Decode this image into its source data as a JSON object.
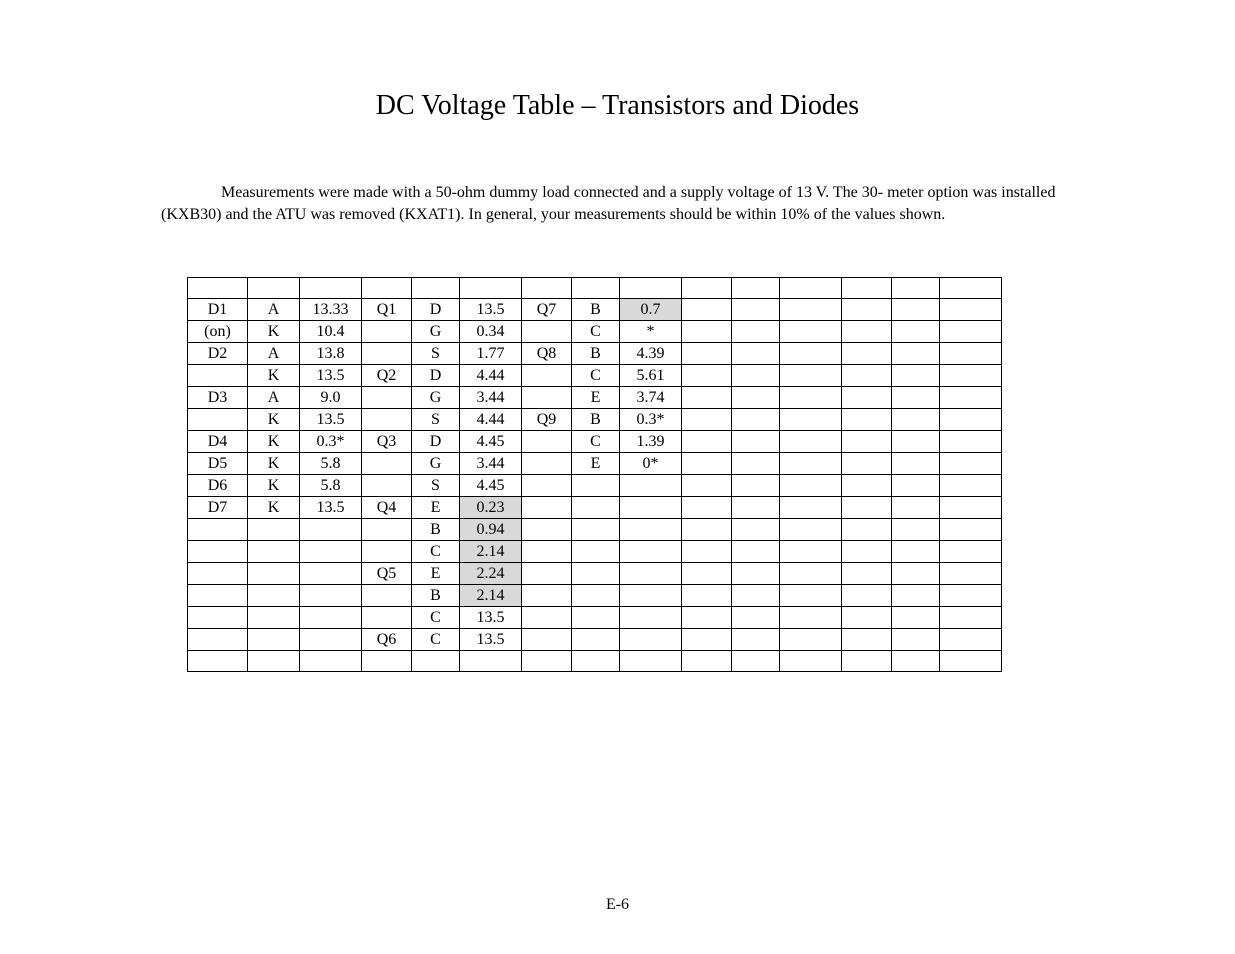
{
  "title": "DC Voltage Table – Transistors and Diodes",
  "description": "Measurements were made with a 50-ohm dummy load connected and a supply voltage of 13 V. The 30- meter option was installed (KXB30) and the ATU was removed (KXAT1). In general, your measurements should be within 10% of the values shown.",
  "pageNumber": "E-6",
  "table": {
    "rows": [
      [
        {
          "v": "",
          "s": 0
        },
        {
          "v": "",
          "s": 0
        },
        {
          "v": "",
          "s": 0
        },
        {
          "v": "",
          "s": 0
        },
        {
          "v": "",
          "s": 0
        },
        {
          "v": "",
          "s": 0
        },
        {
          "v": "",
          "s": 0
        },
        {
          "v": "",
          "s": 0
        },
        {
          "v": "",
          "s": 0
        },
        {
          "v": "",
          "s": 0
        },
        {
          "v": "",
          "s": 0
        },
        {
          "v": "",
          "s": 0
        },
        {
          "v": "",
          "s": 0
        },
        {
          "v": "",
          "s": 0
        },
        {
          "v": "",
          "s": 0
        }
      ],
      [
        {
          "v": "D1",
          "s": 0
        },
        {
          "v": "A",
          "s": 0
        },
        {
          "v": "13.33",
          "s": 0
        },
        {
          "v": "Q1",
          "s": 0
        },
        {
          "v": "D",
          "s": 0
        },
        {
          "v": "13.5",
          "s": 0
        },
        {
          "v": "Q7",
          "s": 0
        },
        {
          "v": "B",
          "s": 0
        },
        {
          "v": "0.7",
          "s": 1
        },
        {
          "v": "",
          "s": 0
        },
        {
          "v": "",
          "s": 0
        },
        {
          "v": "",
          "s": 0
        },
        {
          "v": "",
          "s": 0
        },
        {
          "v": "",
          "s": 0
        },
        {
          "v": "",
          "s": 0
        }
      ],
      [
        {
          "v": "(on)",
          "s": 0
        },
        {
          "v": "K",
          "s": 0
        },
        {
          "v": "10.4",
          "s": 0
        },
        {
          "v": "",
          "s": 0
        },
        {
          "v": "G",
          "s": 0
        },
        {
          "v": "0.34",
          "s": 0
        },
        {
          "v": "",
          "s": 0
        },
        {
          "v": "C",
          "s": 0
        },
        {
          "v": "*",
          "s": 0
        },
        {
          "v": "",
          "s": 0
        },
        {
          "v": "",
          "s": 0
        },
        {
          "v": "",
          "s": 0
        },
        {
          "v": "",
          "s": 0
        },
        {
          "v": "",
          "s": 0
        },
        {
          "v": "",
          "s": 0
        }
      ],
      [
        {
          "v": "D2",
          "s": 0
        },
        {
          "v": "A",
          "s": 0
        },
        {
          "v": "13.8",
          "s": 0
        },
        {
          "v": "",
          "s": 0
        },
        {
          "v": "S",
          "s": 0
        },
        {
          "v": "1.77",
          "s": 0
        },
        {
          "v": "Q8",
          "s": 0
        },
        {
          "v": "B",
          "s": 0
        },
        {
          "v": "4.39",
          "s": 0
        },
        {
          "v": "",
          "s": 0
        },
        {
          "v": "",
          "s": 0
        },
        {
          "v": "",
          "s": 0
        },
        {
          "v": "",
          "s": 0
        },
        {
          "v": "",
          "s": 0
        },
        {
          "v": "",
          "s": 0
        }
      ],
      [
        {
          "v": "",
          "s": 0
        },
        {
          "v": "K",
          "s": 0
        },
        {
          "v": "13.5",
          "s": 0
        },
        {
          "v": "Q2",
          "s": 0
        },
        {
          "v": "D",
          "s": 0
        },
        {
          "v": "4.44",
          "s": 0
        },
        {
          "v": "",
          "s": 0
        },
        {
          "v": "C",
          "s": 0
        },
        {
          "v": "5.61",
          "s": 0
        },
        {
          "v": "",
          "s": 0
        },
        {
          "v": "",
          "s": 0
        },
        {
          "v": "",
          "s": 0
        },
        {
          "v": "",
          "s": 0
        },
        {
          "v": "",
          "s": 0
        },
        {
          "v": "",
          "s": 0
        }
      ],
      [
        {
          "v": "D3",
          "s": 0
        },
        {
          "v": "A",
          "s": 0
        },
        {
          "v": "9.0",
          "s": 0
        },
        {
          "v": "",
          "s": 0
        },
        {
          "v": "G",
          "s": 0
        },
        {
          "v": "3.44",
          "s": 0
        },
        {
          "v": "",
          "s": 0
        },
        {
          "v": "E",
          "s": 0
        },
        {
          "v": "3.74",
          "s": 0
        },
        {
          "v": "",
          "s": 0
        },
        {
          "v": "",
          "s": 0
        },
        {
          "v": "",
          "s": 0
        },
        {
          "v": "",
          "s": 0
        },
        {
          "v": "",
          "s": 0
        },
        {
          "v": "",
          "s": 0
        }
      ],
      [
        {
          "v": "",
          "s": 0
        },
        {
          "v": "K",
          "s": 0
        },
        {
          "v": "13.5",
          "s": 0
        },
        {
          "v": "",
          "s": 0
        },
        {
          "v": "S",
          "s": 0
        },
        {
          "v": "4.44",
          "s": 0
        },
        {
          "v": "Q9",
          "s": 0
        },
        {
          "v": "B",
          "s": 0
        },
        {
          "v": "0.3*",
          "s": 0
        },
        {
          "v": "",
          "s": 0
        },
        {
          "v": "",
          "s": 0
        },
        {
          "v": "",
          "s": 0
        },
        {
          "v": "",
          "s": 0
        },
        {
          "v": "",
          "s": 0
        },
        {
          "v": "",
          "s": 0
        }
      ],
      [
        {
          "v": "D4",
          "s": 0
        },
        {
          "v": "K",
          "s": 0
        },
        {
          "v": "0.3*",
          "s": 0
        },
        {
          "v": "Q3",
          "s": 0
        },
        {
          "v": "D",
          "s": 0
        },
        {
          "v": "4.45",
          "s": 0
        },
        {
          "v": "",
          "s": 0
        },
        {
          "v": "C",
          "s": 0
        },
        {
          "v": "1.39",
          "s": 0
        },
        {
          "v": "",
          "s": 0
        },
        {
          "v": "",
          "s": 0
        },
        {
          "v": "",
          "s": 0
        },
        {
          "v": "",
          "s": 0
        },
        {
          "v": "",
          "s": 0
        },
        {
          "v": "",
          "s": 0
        }
      ],
      [
        {
          "v": "D5",
          "s": 0
        },
        {
          "v": "K",
          "s": 0
        },
        {
          "v": "5.8",
          "s": 0
        },
        {
          "v": "",
          "s": 0
        },
        {
          "v": "G",
          "s": 0
        },
        {
          "v": "3.44",
          "s": 0
        },
        {
          "v": "",
          "s": 0
        },
        {
          "v": "E",
          "s": 0
        },
        {
          "v": "0*",
          "s": 0
        },
        {
          "v": "",
          "s": 0
        },
        {
          "v": "",
          "s": 0
        },
        {
          "v": "",
          "s": 0
        },
        {
          "v": "",
          "s": 0
        },
        {
          "v": "",
          "s": 0
        },
        {
          "v": "",
          "s": 0
        }
      ],
      [
        {
          "v": "D6",
          "s": 0
        },
        {
          "v": "K",
          "s": 0
        },
        {
          "v": "5.8",
          "s": 0
        },
        {
          "v": "",
          "s": 0
        },
        {
          "v": "S",
          "s": 0
        },
        {
          "v": "4.45",
          "s": 0
        },
        {
          "v": "",
          "s": 0
        },
        {
          "v": "",
          "s": 0
        },
        {
          "v": "",
          "s": 0
        },
        {
          "v": "",
          "s": 0
        },
        {
          "v": "",
          "s": 0
        },
        {
          "v": "",
          "s": 0
        },
        {
          "v": "",
          "s": 0
        },
        {
          "v": "",
          "s": 0
        },
        {
          "v": "",
          "s": 0
        }
      ],
      [
        {
          "v": "D7",
          "s": 0
        },
        {
          "v": "K",
          "s": 0
        },
        {
          "v": "13.5",
          "s": 0
        },
        {
          "v": "Q4",
          "s": 0
        },
        {
          "v": "E",
          "s": 0
        },
        {
          "v": "0.23",
          "s": 1
        },
        {
          "v": "",
          "s": 0
        },
        {
          "v": "",
          "s": 0
        },
        {
          "v": "",
          "s": 0
        },
        {
          "v": "",
          "s": 0
        },
        {
          "v": "",
          "s": 0
        },
        {
          "v": "",
          "s": 0
        },
        {
          "v": "",
          "s": 0
        },
        {
          "v": "",
          "s": 0
        },
        {
          "v": "",
          "s": 0
        }
      ],
      [
        {
          "v": "",
          "s": 0
        },
        {
          "v": "",
          "s": 0
        },
        {
          "v": "",
          "s": 0
        },
        {
          "v": "",
          "s": 0
        },
        {
          "v": "B",
          "s": 0
        },
        {
          "v": "0.94",
          "s": 1
        },
        {
          "v": "",
          "s": 0
        },
        {
          "v": "",
          "s": 0
        },
        {
          "v": "",
          "s": 0
        },
        {
          "v": "",
          "s": 0
        },
        {
          "v": "",
          "s": 0
        },
        {
          "v": "",
          "s": 0
        },
        {
          "v": "",
          "s": 0
        },
        {
          "v": "",
          "s": 0
        },
        {
          "v": "",
          "s": 0
        }
      ],
      [
        {
          "v": "",
          "s": 0
        },
        {
          "v": "",
          "s": 0
        },
        {
          "v": "",
          "s": 0
        },
        {
          "v": "",
          "s": 0
        },
        {
          "v": "C",
          "s": 0
        },
        {
          "v": "2.14",
          "s": 1
        },
        {
          "v": "",
          "s": 0
        },
        {
          "v": "",
          "s": 0
        },
        {
          "v": "",
          "s": 0
        },
        {
          "v": "",
          "s": 0
        },
        {
          "v": "",
          "s": 0
        },
        {
          "v": "",
          "s": 0
        },
        {
          "v": "",
          "s": 0
        },
        {
          "v": "",
          "s": 0
        },
        {
          "v": "",
          "s": 0
        }
      ],
      [
        {
          "v": "",
          "s": 0
        },
        {
          "v": "",
          "s": 0
        },
        {
          "v": "",
          "s": 0
        },
        {
          "v": "Q5",
          "s": 0
        },
        {
          "v": "E",
          "s": 0
        },
        {
          "v": "2.24",
          "s": 1
        },
        {
          "v": "",
          "s": 0
        },
        {
          "v": "",
          "s": 0
        },
        {
          "v": "",
          "s": 0
        },
        {
          "v": "",
          "s": 0
        },
        {
          "v": "",
          "s": 0
        },
        {
          "v": "",
          "s": 0
        },
        {
          "v": "",
          "s": 0
        },
        {
          "v": "",
          "s": 0
        },
        {
          "v": "",
          "s": 0
        }
      ],
      [
        {
          "v": "",
          "s": 0
        },
        {
          "v": "",
          "s": 0
        },
        {
          "v": "",
          "s": 0
        },
        {
          "v": "",
          "s": 0
        },
        {
          "v": "B",
          "s": 0
        },
        {
          "v": "2.14",
          "s": 1
        },
        {
          "v": "",
          "s": 0
        },
        {
          "v": "",
          "s": 0
        },
        {
          "v": "",
          "s": 0
        },
        {
          "v": "",
          "s": 0
        },
        {
          "v": "",
          "s": 0
        },
        {
          "v": "",
          "s": 0
        },
        {
          "v": "",
          "s": 0
        },
        {
          "v": "",
          "s": 0
        },
        {
          "v": "",
          "s": 0
        }
      ],
      [
        {
          "v": "",
          "s": 0
        },
        {
          "v": "",
          "s": 0
        },
        {
          "v": "",
          "s": 0
        },
        {
          "v": "",
          "s": 0
        },
        {
          "v": "C",
          "s": 0
        },
        {
          "v": "13.5",
          "s": 0
        },
        {
          "v": "",
          "s": 0
        },
        {
          "v": "",
          "s": 0
        },
        {
          "v": "",
          "s": 0
        },
        {
          "v": "",
          "s": 0
        },
        {
          "v": "",
          "s": 0
        },
        {
          "v": "",
          "s": 0
        },
        {
          "v": "",
          "s": 0
        },
        {
          "v": "",
          "s": 0
        },
        {
          "v": "",
          "s": 0
        }
      ],
      [
        {
          "v": "",
          "s": 0
        },
        {
          "v": "",
          "s": 0
        },
        {
          "v": "",
          "s": 0
        },
        {
          "v": "Q6",
          "s": 0
        },
        {
          "v": "C",
          "s": 0
        },
        {
          "v": "13.5",
          "s": 0
        },
        {
          "v": "",
          "s": 0
        },
        {
          "v": "",
          "s": 0
        },
        {
          "v": "",
          "s": 0
        },
        {
          "v": "",
          "s": 0
        },
        {
          "v": "",
          "s": 0
        },
        {
          "v": "",
          "s": 0
        },
        {
          "v": "",
          "s": 0
        },
        {
          "v": "",
          "s": 0
        },
        {
          "v": "",
          "s": 0
        }
      ],
      [
        {
          "v": "",
          "s": 0
        },
        {
          "v": "",
          "s": 0
        },
        {
          "v": "",
          "s": 0
        },
        {
          "v": "",
          "s": 0
        },
        {
          "v": "",
          "s": 0
        },
        {
          "v": "",
          "s": 0
        },
        {
          "v": "",
          "s": 0
        },
        {
          "v": "",
          "s": 0
        },
        {
          "v": "",
          "s": 0
        },
        {
          "v": "",
          "s": 0
        },
        {
          "v": "",
          "s": 0
        },
        {
          "v": "",
          "s": 0
        },
        {
          "v": "",
          "s": 0
        },
        {
          "v": "",
          "s": 0
        },
        {
          "v": "",
          "s": 0
        }
      ]
    ],
    "colClasses": [
      "col-a",
      "col-b",
      "col-c",
      "col-d",
      "col-e",
      "col-f",
      "col-g",
      "col-h",
      "col-i",
      "col-j",
      "col-k",
      "col-l",
      "col-m",
      "col-n",
      "col-o"
    ]
  }
}
